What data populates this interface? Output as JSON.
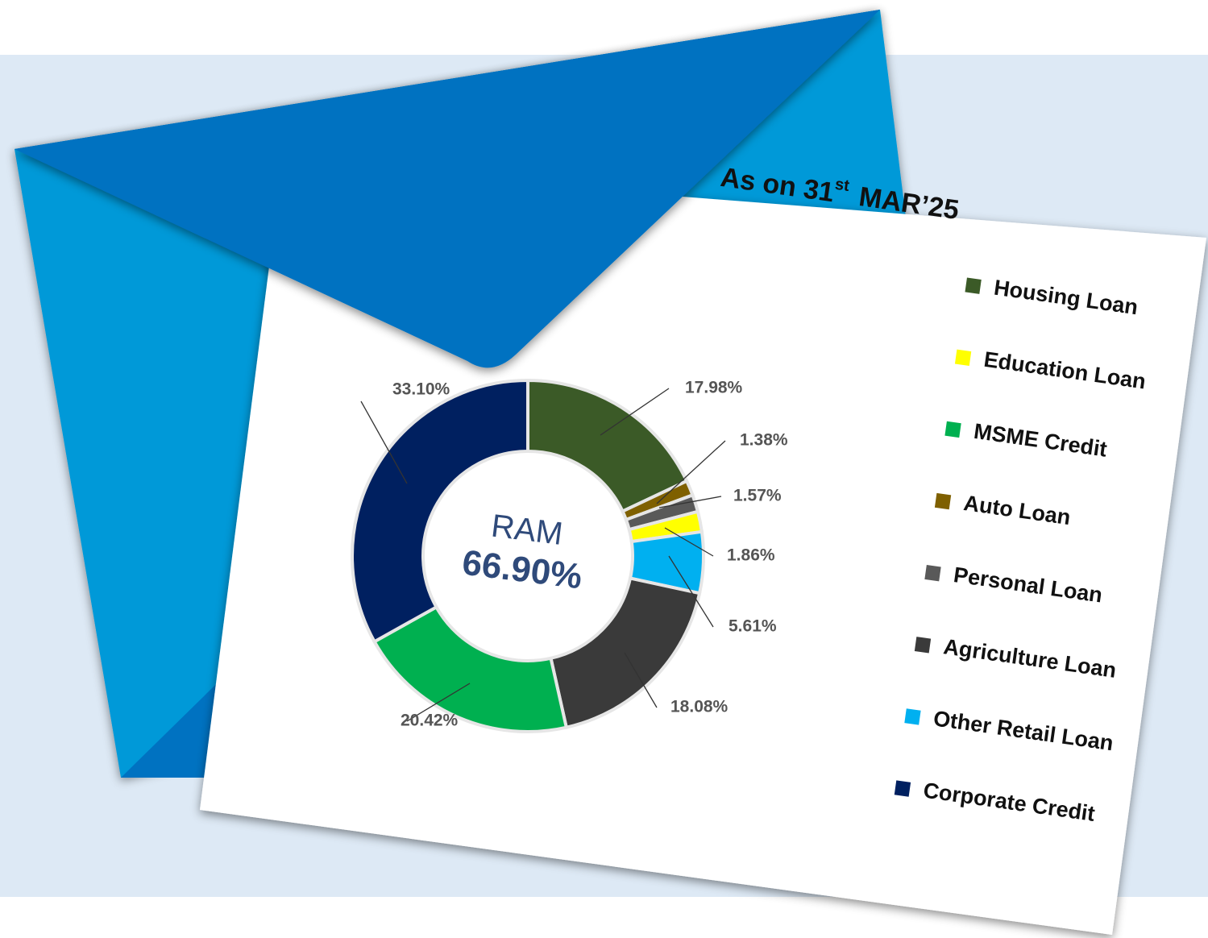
{
  "chart_data": {
    "type": "donut",
    "title": [
      "As on 31",
      "st",
      "MAR’25"
    ],
    "center_label": "RAM",
    "center_value_label": "66.90%",
    "categories": [
      "Housing Loan",
      "Auto Loan",
      "Personal Loan",
      "Education Loan",
      "Other Retail Loan",
      "Agriculture Loan",
      "MSME Credit",
      "Corporate Credit"
    ],
    "values": [
      17.98,
      1.38,
      1.57,
      1.86,
      5.61,
      18.08,
      20.42,
      33.1
    ],
    "value_labels": [
      "17.98%",
      "1.38%",
      "1.57%",
      "1.86%",
      "5.61%",
      "18.08%",
      "20.42%",
      "33.10%"
    ],
    "colors": [
      "#3b5a27",
      "#7f6000",
      "#595959",
      "#ffff00",
      "#00b0f0",
      "#3a3a3a",
      "#00b050",
      "#002060"
    ]
  }
}
